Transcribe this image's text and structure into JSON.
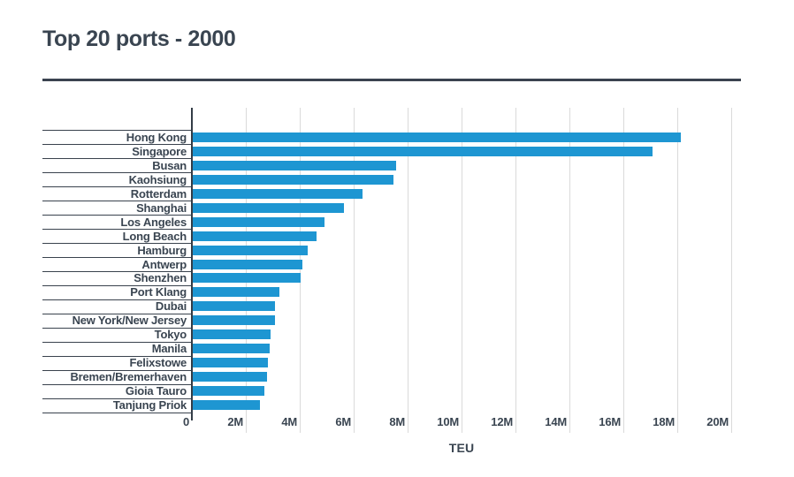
{
  "chart_data": {
    "type": "bar",
    "orientation": "horizontal",
    "title": "Top 20 ports - 2000",
    "xlabel": "TEU",
    "categories": [
      "Hong Kong",
      "Singapore",
      "Busan",
      "Kaohsiung",
      "Rotterdam",
      "Shanghai",
      "Los Angeles",
      "Long Beach",
      "Hamburg",
      "Antwerp",
      "Shenzhen",
      "Port Klang",
      "Dubai",
      "New York/New Jersey",
      "Tokyo",
      "Manila",
      "Felixstowe",
      "Bremen/Bremerhaven",
      "Gioia Tauro",
      "Tanjung Priok"
    ],
    "values_teu": [
      18100000,
      17040000,
      7550000,
      7430000,
      6280000,
      5610000,
      4880000,
      4600000,
      4250000,
      4080000,
      3990000,
      3210000,
      3060000,
      3040000,
      2900000,
      2860000,
      2800000,
      2740000,
      2650000,
      2480000
    ],
    "xlim": [
      0,
      20000000
    ],
    "xtick_step": 2000000,
    "xtick_labels": [
      "0",
      "2M",
      "4M",
      "6M",
      "8M",
      "10M",
      "12M",
      "14M",
      "16M",
      "18M",
      "20M"
    ],
    "grid": "vertical gridlines every 2M, light gray",
    "legend": "none",
    "colors": {
      "bar": "#1E96D2",
      "text": "#3A4551",
      "axis_line": "#333C46",
      "row_line": "#39424D",
      "gridline": "#DADADA",
      "title_rule": "#3B4350",
      "background": "#FFFFFF"
    }
  }
}
